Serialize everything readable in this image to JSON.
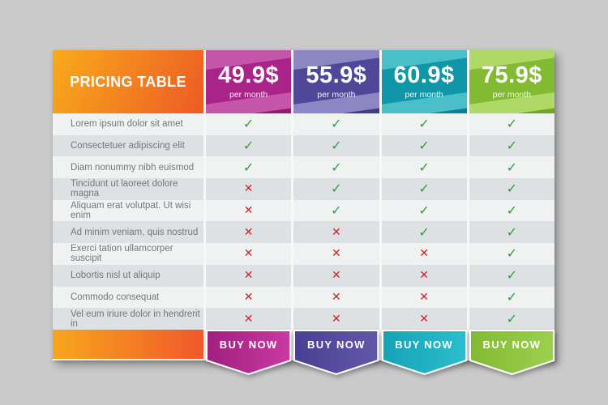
{
  "page": {
    "background": "#cacaca"
  },
  "table": {
    "title": "PRICING TABLE",
    "title_gradient": {
      "from": "#f8ab1b",
      "to": "#ee5a24"
    },
    "footer_gradient": {
      "from": "#f7a61d",
      "to": "#f1582a"
    },
    "row_colors": {
      "odd": "#f0f1f1",
      "even": "#dde1e4",
      "label_text": "#73777c"
    },
    "marks": {
      "yes_glyph": "✓",
      "no_glyph": "✕",
      "yes_color": "#2e9e40",
      "no_color": "#d22027"
    },
    "plans": [
      {
        "price": "49.9$",
        "per": "per month",
        "buy": "BUY NOW",
        "light": "#c455a9",
        "dark": "#aa2388",
        "deep": "#8f1c72",
        "ribbon_from": "#a01f80",
        "ribbon_to": "#ca3aa2"
      },
      {
        "price": "55.9$",
        "per": "per month",
        "buy": "BUY NOW",
        "light": "#8d86c2",
        "dark": "#4f4798",
        "deep": "#423b85",
        "ribbon_from": "#4a3f93",
        "ribbon_to": "#6257a8"
      },
      {
        "price": "60.9$",
        "per": "per month",
        "buy": "BUY NOW",
        "light": "#49bfca",
        "dark": "#1096a9",
        "deep": "#0c8193",
        "ribbon_from": "#14a3b6",
        "ribbon_to": "#2cbecd"
      },
      {
        "price": "75.9$",
        "per": "per month",
        "buy": "BUY NOW",
        "light": "#b0d867",
        "dark": "#82ba31",
        "deep": "#71a526",
        "ribbon_from": "#82b932",
        "ribbon_to": "#9ed04e"
      }
    ],
    "features": [
      "Lorem ipsum dolor sit amet",
      "Consectetuer adipiscing elit",
      "Diam nonummy nibh euismod",
      "Tincidunt ut laoreet dolore magna",
      "Aliquam erat volutpat. Ut wisi enim",
      "Ad minim veniam, quis nostrud",
      "Exerci tation ullamcorper suscipit",
      "Lobortis nisl ut aliquip",
      "Commodo consequat",
      "Vel eum iriure dolor in hendrerit in"
    ],
    "matrix": [
      [
        1,
        1,
        1,
        1
      ],
      [
        1,
        1,
        1,
        1
      ],
      [
        1,
        1,
        1,
        1
      ],
      [
        0,
        1,
        1,
        1
      ],
      [
        0,
        1,
        1,
        1
      ],
      [
        0,
        0,
        1,
        1
      ],
      [
        0,
        0,
        0,
        1
      ],
      [
        0,
        0,
        0,
        1
      ],
      [
        0,
        0,
        0,
        1
      ],
      [
        0,
        0,
        0,
        1
      ]
    ]
  }
}
